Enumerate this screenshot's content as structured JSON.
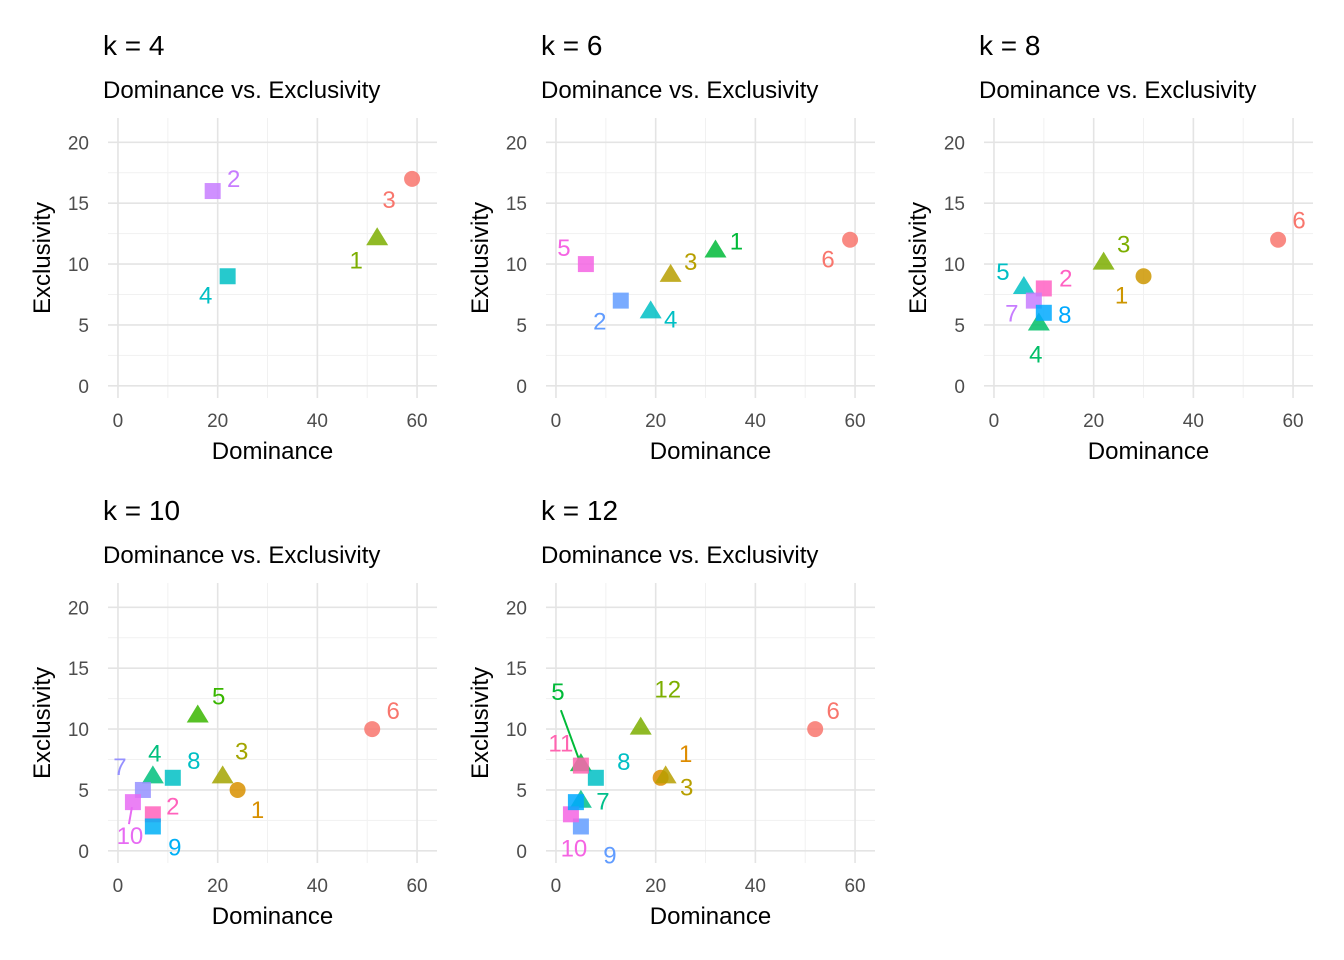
{
  "chart_data": [
    {
      "type": "scatter",
      "title": "k = 4",
      "subtitle": "Dominance vs. Exclusivity",
      "xlabel": "Dominance",
      "ylabel": "Exclusivity",
      "xlim": [
        -2,
        64
      ],
      "ylim": [
        -1,
        22
      ],
      "xticks": [
        0,
        20,
        40,
        60
      ],
      "yticks": [
        0,
        5,
        10,
        15,
        20
      ],
      "grid": true,
      "legend": "none",
      "points": [
        {
          "label": "1",
          "x": 52,
          "y": 12.2,
          "shape": "triangle",
          "color": "#7CAE00"
        },
        {
          "label": "2",
          "x": 19,
          "y": 16,
          "shape": "square",
          "color": "#C77CFF"
        },
        {
          "label": "3",
          "x": 59,
          "y": 17,
          "shape": "circle",
          "color": "#F8766D"
        },
        {
          "label": "4",
          "x": 22,
          "y": 9,
          "shape": "square",
          "color": "#00BFC4"
        }
      ]
    },
    {
      "type": "scatter",
      "title": "k = 6",
      "subtitle": "Dominance vs. Exclusivity",
      "xlabel": "Dominance",
      "ylabel": "Exclusivity",
      "xlim": [
        -2,
        64
      ],
      "ylim": [
        -1,
        22
      ],
      "xticks": [
        0,
        20,
        40,
        60
      ],
      "yticks": [
        0,
        5,
        10,
        15,
        20
      ],
      "grid": true,
      "legend": "none",
      "points": [
        {
          "label": "1",
          "x": 32,
          "y": 11.2,
          "shape": "triangle",
          "color": "#00BA38"
        },
        {
          "label": "2",
          "x": 13,
          "y": 7,
          "shape": "square",
          "color": "#619CFF"
        },
        {
          "label": "3",
          "x": 23,
          "y": 9.2,
          "shape": "triangle",
          "color": "#B79F00"
        },
        {
          "label": "4",
          "x": 19,
          "y": 6.2,
          "shape": "triangle",
          "color": "#00BFC4"
        },
        {
          "label": "5",
          "x": 6,
          "y": 10,
          "shape": "square",
          "color": "#F564E3"
        },
        {
          "label": "6",
          "x": 59,
          "y": 12,
          "shape": "circle",
          "color": "#F8766D"
        }
      ]
    },
    {
      "type": "scatter",
      "title": "k = 8",
      "subtitle": "Dominance vs. Exclusivity",
      "xlabel": "Dominance",
      "ylabel": "Exclusivity",
      "xlim": [
        -2,
        64
      ],
      "ylim": [
        -1,
        22
      ],
      "xticks": [
        0,
        20,
        40,
        60
      ],
      "yticks": [
        0,
        5,
        10,
        15,
        20
      ],
      "grid": true,
      "legend": "none",
      "points": [
        {
          "label": "1",
          "x": 30,
          "y": 9,
          "shape": "circle",
          "color": "#CD9600"
        },
        {
          "label": "2",
          "x": 10,
          "y": 8,
          "shape": "square",
          "color": "#FF61C3"
        },
        {
          "label": "3",
          "x": 22,
          "y": 10.2,
          "shape": "triangle",
          "color": "#7CAE00"
        },
        {
          "label": "4",
          "x": 9,
          "y": 5.2,
          "shape": "triangle",
          "color": "#00BE67"
        },
        {
          "label": "5",
          "x": 6,
          "y": 8.2,
          "shape": "triangle",
          "color": "#00BFC4"
        },
        {
          "label": "6",
          "x": 57,
          "y": 12,
          "shape": "circle",
          "color": "#F8766D"
        },
        {
          "label": "7",
          "x": 8,
          "y": 7,
          "shape": "square",
          "color": "#C77CFF"
        },
        {
          "label": "8",
          "x": 10,
          "y": 6,
          "shape": "square",
          "color": "#00A9FF"
        }
      ]
    },
    {
      "type": "scatter",
      "title": "k = 10",
      "subtitle": "Dominance vs. Exclusivity",
      "xlabel": "Dominance",
      "ylabel": "Exclusivity",
      "xlim": [
        -2,
        64
      ],
      "ylim": [
        -1,
        22
      ],
      "xticks": [
        0,
        20,
        40,
        60
      ],
      "yticks": [
        0,
        5,
        10,
        15,
        20
      ],
      "grid": true,
      "legend": "none",
      "points": [
        {
          "label": "1",
          "x": 24,
          "y": 5,
          "shape": "circle",
          "color": "#D89000"
        },
        {
          "label": "2",
          "x": 7,
          "y": 3,
          "shape": "square",
          "color": "#FF62BC"
        },
        {
          "label": "3",
          "x": 21,
          "y": 6.2,
          "shape": "triangle",
          "color": "#A3A500"
        },
        {
          "label": "4",
          "x": 7,
          "y": 6.2,
          "shape": "triangle",
          "color": "#00BF7D"
        },
        {
          "label": "5",
          "x": 16,
          "y": 11.2,
          "shape": "triangle",
          "color": "#39B600"
        },
        {
          "label": "6",
          "x": 51,
          "y": 10,
          "shape": "circle",
          "color": "#F8766D"
        },
        {
          "label": "7",
          "x": 5,
          "y": 5,
          "shape": "square",
          "color": "#9590FF"
        },
        {
          "label": "8",
          "x": 11,
          "y": 6,
          "shape": "square",
          "color": "#00BFC4"
        },
        {
          "label": "9",
          "x": 7,
          "y": 2,
          "shape": "square",
          "color": "#00B0F6"
        },
        {
          "label": "10",
          "x": 3,
          "y": 4,
          "shape": "square",
          "color": "#E76BF3"
        }
      ]
    },
    {
      "type": "scatter",
      "title": "k = 12",
      "subtitle": "Dominance vs. Exclusivity",
      "xlabel": "Dominance",
      "ylabel": "Exclusivity",
      "xlim": [
        -2,
        64
      ],
      "ylim": [
        -1,
        22
      ],
      "xticks": [
        0,
        20,
        40,
        60
      ],
      "yticks": [
        0,
        5,
        10,
        15,
        20
      ],
      "grid": true,
      "legend": "none",
      "points": [
        {
          "label": "1",
          "x": 21,
          "y": 6,
          "shape": "circle",
          "color": "#DE8C00"
        },
        {
          "label": "3",
          "x": 22,
          "y": 6.2,
          "shape": "triangle",
          "color": "#B79F00"
        },
        {
          "label": "5",
          "x": 5,
          "y": 7.2,
          "shape": "triangle",
          "color": "#00BA38"
        },
        {
          "label": "6",
          "x": 52,
          "y": 10,
          "shape": "circle",
          "color": "#F8766D"
        },
        {
          "label": "7",
          "x": 5,
          "y": 4.2,
          "shape": "triangle",
          "color": "#00C08B"
        },
        {
          "label": "8",
          "x": 8,
          "y": 6,
          "shape": "square",
          "color": "#00BFC4"
        },
        {
          "label": "9",
          "x": 5,
          "y": 2,
          "shape": "square",
          "color": "#619CFF"
        },
        {
          "label": "10",
          "x": 3,
          "y": 3,
          "shape": "square",
          "color": "#F564E3"
        },
        {
          "label": "11",
          "x": 5,
          "y": 7,
          "shape": "square",
          "color": "#FF64B0"
        },
        {
          "label": "12",
          "x": 17,
          "y": 10.2,
          "shape": "triangle",
          "color": "#7CAE00"
        },
        {
          "label": "",
          "x": 4,
          "y": 4,
          "shape": "square",
          "color": "#00A9FF"
        }
      ]
    }
  ]
}
